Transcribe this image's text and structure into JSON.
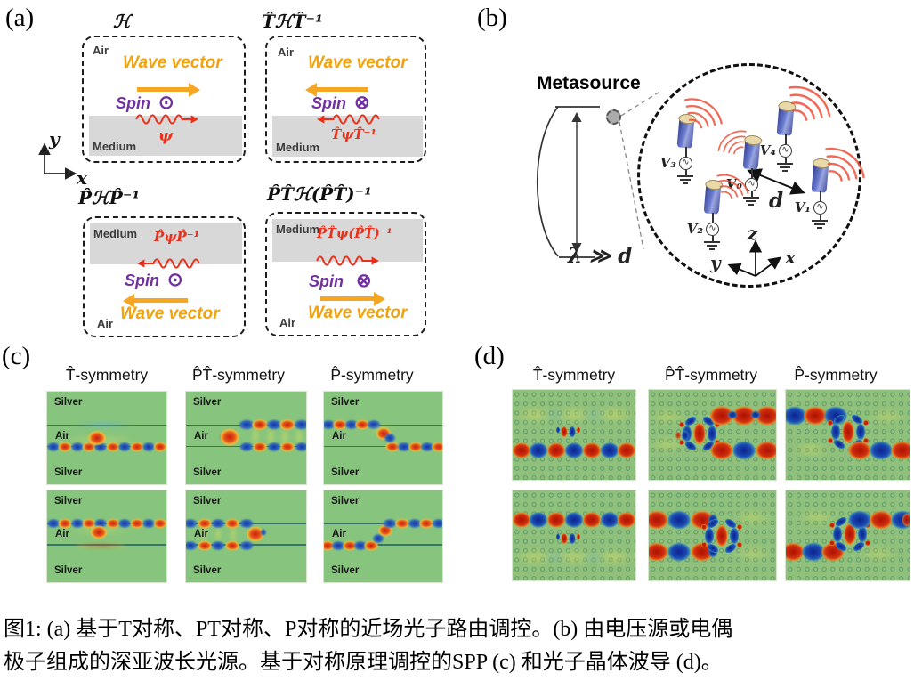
{
  "panel_a": {
    "tag": "(a)",
    "axis": {
      "x": "x",
      "y": "y"
    },
    "boxes": [
      {
        "title": "ℋ",
        "region_top": "Air",
        "region_bottom": "Medium",
        "wave_label": "Wave vector",
        "spin_label": "Spin",
        "spin_symbol": "⊙",
        "psi_label": "ψ"
      },
      {
        "title": "T̂ℋT̂⁻¹",
        "region_top": "Air",
        "region_bottom": "Medium",
        "wave_label": "Wave vector",
        "spin_label": "Spin",
        "spin_symbol": "⊗",
        "psi_label": "T̂ψT̂⁻¹"
      },
      {
        "title": "P̂ℋP̂⁻¹",
        "region_top": "Medium",
        "region_bottom": "Air",
        "wave_label": "Wave vector",
        "spin_label": "Spin",
        "spin_symbol": "⊙",
        "psi_label": "P̂ψP̂⁻¹"
      },
      {
        "title": "P̂T̂ℋ(P̂T̂)⁻¹",
        "region_top": "Medium",
        "region_bottom": "Air",
        "wave_label": "Wave vector",
        "spin_label": "Spin",
        "spin_symbol": "⊗",
        "psi_label": "P̂T̂ψ(P̂T̂)⁻¹"
      }
    ]
  },
  "panel_b": {
    "tag": "(b)",
    "title": "Metasource",
    "scale_label": "λ ≫ d",
    "distance_label": "d",
    "axes": {
      "z": "z",
      "y": "y",
      "x": "x"
    },
    "sources": [
      "V₃",
      "V₂",
      "V₀",
      "V₄",
      "V₁"
    ]
  },
  "panel_c": {
    "tag": "(c)",
    "column_titles": [
      "T̂-symmetry",
      "P̂T̂-symmetry",
      "P̂-symmetry"
    ],
    "region_labels": {
      "top": "Silver",
      "middle": "Air",
      "bottom": "Silver"
    },
    "plots": [
      {
        "pattern": "chain-bottom-full"
      },
      {
        "pattern": "split-right"
      },
      {
        "pattern": "route-top-to-bottom"
      },
      {
        "pattern": "chain-top-full"
      },
      {
        "pattern": "split-left"
      },
      {
        "pattern": "route-bottom-to-top"
      }
    ]
  },
  "panel_d": {
    "tag": "(d)",
    "column_titles": [
      "T̂-symmetry",
      "P̂T̂-symmetry",
      "P̂-symmetry"
    ],
    "plots": [
      {
        "pattern": "chain-bottom-full"
      },
      {
        "pattern": "split-right"
      },
      {
        "pattern": "route-top-to-bottom"
      },
      {
        "pattern": "chain-top-full"
      },
      {
        "pattern": "split-left"
      },
      {
        "pattern": "route-bottom-to-top"
      }
    ]
  },
  "caption": {
    "line1": "图1: (a) 基于T对称、PT对称、P对称的近场光子路由调控。(b) 由电压源或电偶",
    "line2": "极子组成的深亚波长光源。基于对称原理调控的SPP (c) 和光子晶体波导 (d)。"
  },
  "colors": {
    "wave_orange": "#F2A20C",
    "spin_purple": "#7030A0",
    "psi_red": "#E8301A",
    "medium_gray": "#D8D8D8",
    "plot_green": "#87C47D",
    "blob_red": "#CC1D0D",
    "blob_blue": "#15339F"
  }
}
